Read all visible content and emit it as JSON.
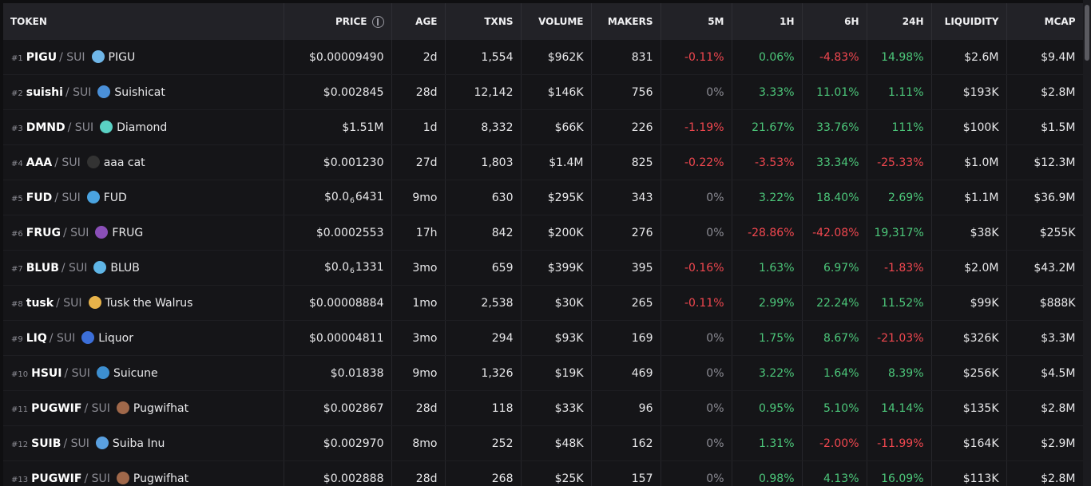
{
  "table": {
    "header": [
      "TOKEN",
      "PRICE",
      "AGE",
      "TXNS",
      "VOLUME",
      "MAKERS",
      "5M",
      "1H",
      "6H",
      "24H",
      "LIQUIDITY",
      "MCAP"
    ],
    "rows": [
      {
        "rank": "#1",
        "symbol": "PIGU",
        "chain": "/ SUI",
        "name": "PIGU",
        "price": "$0.00009490",
        "age": "2d",
        "txns": "1,554",
        "volume": "$962K",
        "makers": "831",
        "m5": "-0.11%",
        "h1": "0.06%",
        "h6": "-4.83%",
        "h24": "14.98%",
        "liquidity": "$2.6M",
        "mcap": "$9.4M"
      },
      {
        "rank": "#2",
        "symbol": "suishi",
        "chain": "/ SUI",
        "name": "Suishicat",
        "price": "$0.002845",
        "age": "28d",
        "txns": "12,142",
        "volume": "$146K",
        "makers": "756",
        "m5": "0%",
        "h1": "3.33%",
        "h6": "11.01%",
        "h24": "1.11%",
        "liquidity": "$193K",
        "mcap": "$2.8M"
      },
      {
        "rank": "#3",
        "symbol": "DMND",
        "chain": "/ SUI",
        "name": "Diamond",
        "price": "$1.51M",
        "age": "1d",
        "txns": "8,332",
        "volume": "$66K",
        "makers": "226",
        "m5": "-1.19%",
        "h1": "21.67%",
        "h6": "33.76%",
        "h24": "111%",
        "liquidity": "$100K",
        "mcap": "$1.5M"
      },
      {
        "rank": "#4",
        "symbol": "AAA",
        "chain": "/ SUI",
        "name": "aaa cat",
        "price": "$0.001230",
        "age": "27d",
        "txns": "1,803",
        "volume": "$1.4M",
        "makers": "825",
        "m5": "-0.22%",
        "h1": "-3.53%",
        "h6": "33.34%",
        "h24": "-25.33%",
        "liquidity": "$1.0M",
        "mcap": "$12.3M"
      },
      {
        "rank": "#5",
        "symbol": "FUD",
        "chain": "/ SUI",
        "name": "FUD",
        "price": {
          "lead": "$0.0",
          "zeros": "6",
          "digits": "6431"
        },
        "age": "9mo",
        "txns": "630",
        "volume": "$295K",
        "makers": "343",
        "m5": "0%",
        "h1": "3.22%",
        "h6": "18.40%",
        "h24": "2.69%",
        "liquidity": "$1.1M",
        "mcap": "$36.9M"
      },
      {
        "rank": "#6",
        "symbol": "FRUG",
        "chain": "/ SUI",
        "name": "FRUG",
        "price": "$0.0002553",
        "age": "17h",
        "txns": "842",
        "volume": "$200K",
        "makers": "276",
        "m5": "0%",
        "h1": "-28.86%",
        "h6": "-42.08%",
        "h24": "19,317%",
        "liquidity": "$38K",
        "mcap": "$255K"
      },
      {
        "rank": "#7",
        "symbol": "BLUB",
        "chain": "/ SUI",
        "name": "BLUB",
        "price": {
          "lead": "$0.0",
          "zeros": "6",
          "digits": "1331"
        },
        "age": "3mo",
        "txns": "659",
        "volume": "$399K",
        "makers": "395",
        "m5": "-0.16%",
        "h1": "1.63%",
        "h6": "6.97%",
        "h24": "-1.83%",
        "liquidity": "$2.0M",
        "mcap": "$43.2M"
      },
      {
        "rank": "#8",
        "symbol": "tusk",
        "chain": "/ SUI",
        "name": "Tusk the Walrus",
        "price": "$0.00008884",
        "age": "1mo",
        "txns": "2,538",
        "volume": "$30K",
        "makers": "265",
        "m5": "-0.11%",
        "h1": "2.99%",
        "h6": "22.24%",
        "h24": "11.52%",
        "liquidity": "$99K",
        "mcap": "$888K"
      },
      {
        "rank": "#9",
        "symbol": "LIQ",
        "chain": "/ SUI",
        "name": "Liquor",
        "price": "$0.00004811",
        "age": "3mo",
        "txns": "294",
        "volume": "$93K",
        "makers": "169",
        "m5": "0%",
        "h1": "1.75%",
        "h6": "8.67%",
        "h24": "-21.03%",
        "liquidity": "$326K",
        "mcap": "$3.3M"
      },
      {
        "rank": "#10",
        "symbol": "HSUI",
        "chain": "/ SUI",
        "name": "Suicune",
        "price": "$0.01838",
        "age": "9mo",
        "txns": "1,326",
        "volume": "$19K",
        "makers": "469",
        "m5": "0%",
        "h1": "3.22%",
        "h6": "1.64%",
        "h24": "8.39%",
        "liquidity": "$256K",
        "mcap": "$4.5M"
      },
      {
        "rank": "#11",
        "symbol": "PUGWIF",
        "chain": "/ SUI",
        "name": "Pugwifhat",
        "price": "$0.002867",
        "age": "28d",
        "txns": "118",
        "volume": "$33K",
        "makers": "96",
        "m5": "0%",
        "h1": "0.95%",
        "h6": "5.10%",
        "h24": "14.14%",
        "liquidity": "$135K",
        "mcap": "$2.8M"
      },
      {
        "rank": "#12",
        "symbol": "SUIB",
        "chain": "/ SUI",
        "name": "Suiba Inu",
        "price": "$0.002970",
        "age": "8mo",
        "txns": "252",
        "volume": "$48K",
        "makers": "162",
        "m5": "0%",
        "h1": "1.31%",
        "h6": "-2.00%",
        "h24": "-11.99%",
        "liquidity": "$164K",
        "mcap": "$2.9M"
      },
      {
        "rank": "#13",
        "symbol": "PUGWIF",
        "chain": "/ SUI",
        "name": "Pugwifhat",
        "price": "$0.002888",
        "age": "28d",
        "txns": "268",
        "volume": "$25K",
        "makers": "157",
        "m5": "0%",
        "h1": "0.98%",
        "h6": "4.13%",
        "h24": "16.09%",
        "liquidity": "$113K",
        "mcap": "$2.8M"
      }
    ]
  }
}
